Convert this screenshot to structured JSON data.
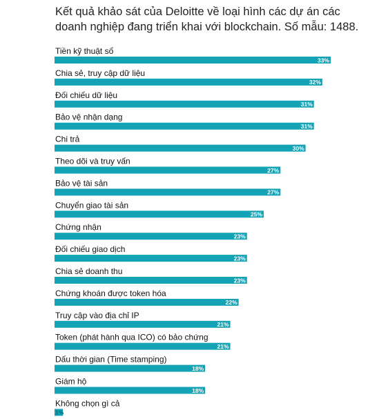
{
  "chart_data": {
    "type": "bar",
    "orientation": "horizontal",
    "title": "Kết quả khảo sát của Deloitte về loại hình các dự án các doanh nghiệp đang triển khai với blockchain. Số mẫu: 1488.",
    "categories": [
      "Tiền kỹ thuật số",
      "Chia sẻ, truy cập dữ liệu",
      "Đối chiếu dữ liệu",
      "Bảo vệ nhận dạng",
      "Chi trả",
      "Theo dõi và truy vấn",
      "Bảo vệ tài sản",
      "Chuyển giao tài sản",
      "Chứng nhận",
      "Đối chiếu giao dịch",
      "Chia sẻ doanh thu",
      "Chứng khoán được token hóa",
      "Truy cập vào địa chỉ IP",
      "Token (phát hành qua ICO) có bảo chứng",
      "Dấu thời gian (Time stamping)",
      "Giám hộ",
      "Không chọn gì cả"
    ],
    "values": [
      33,
      32,
      31,
      31,
      30,
      27,
      27,
      25,
      23,
      23,
      23,
      22,
      21,
      21,
      18,
      18,
      1
    ],
    "value_labels": [
      "33%",
      "32%",
      "31%",
      "31%",
      "30%",
      "27%",
      "27%",
      "25%",
      "23%",
      "23%",
      "23%",
      "22%",
      "21%",
      "21%",
      "18%",
      "18%",
      "1%"
    ],
    "xlim": [
      0,
      33
    ],
    "grid": false,
    "legend": "none",
    "colors": {
      "bar": "#13A3B5",
      "value_text": "#ffffff",
      "label_text": "#111111",
      "title_text": "#222222"
    }
  }
}
